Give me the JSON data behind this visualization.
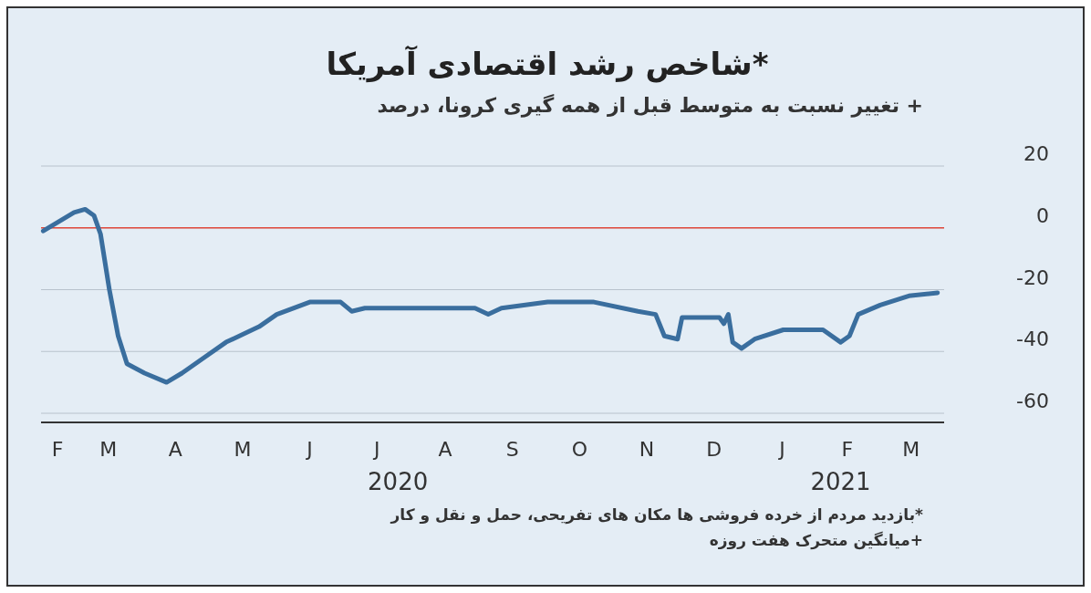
{
  "chart_data": {
    "type": "line",
    "title": "*شاخص رشد اقتصادی آمریکا",
    "subtitle": "+ تغییر نسبت به متوسط قبل از همه گیری کرونا، درصد",
    "x": [
      "2020-02-16",
      "2020-03-01",
      "2020-03-06",
      "2020-03-10",
      "2020-03-13",
      "2020-03-17",
      "2020-03-21",
      "2020-03-25",
      "2020-04-02",
      "2020-04-12",
      "2020-04-19",
      "2020-04-29",
      "2020-05-09",
      "2020-05-24",
      "2020-06-01",
      "2020-06-16",
      "2020-06-30",
      "2020-07-05",
      "2020-07-11",
      "2020-08-01",
      "2020-08-30",
      "2020-09-05",
      "2020-09-11",
      "2020-10-02",
      "2020-10-23",
      "2020-11-12",
      "2020-11-20",
      "2020-11-24",
      "2020-11-30",
      "2020-12-02",
      "2020-12-19",
      "2020-12-21",
      "2020-12-23",
      "2020-12-25",
      "2020-12-29",
      "2021-01-04",
      "2021-01-17",
      "2021-02-04",
      "2021-02-12",
      "2021-02-16",
      "2021-02-20",
      "2021-03-02",
      "2021-03-15",
      "2021-03-28"
    ],
    "series": [
      {
        "color": "#3a6e9e",
        "values": [
          -1,
          5,
          6,
          4,
          -2,
          -20,
          -35,
          -44,
          -47,
          -50,
          -47,
          -42,
          -37,
          -32,
          -28,
          -24,
          -24,
          -27,
          -26,
          -26,
          -26,
          -28,
          -26,
          -24,
          -24,
          -27,
          -28,
          -35,
          -36,
          -29,
          -29,
          -31,
          -28,
          -37,
          -39,
          -36,
          -33,
          -33,
          -37,
          -35,
          -28,
          -25,
          -22,
          -21
        ]
      }
    ],
    "xlim": [
      "2020-02-15",
      "2021-03-31"
    ],
    "xticks": [
      {
        "value": "2020-07-26",
        "label": "2020"
      },
      {
        "value": "2021-02-12",
        "label": "2021"
      }
    ],
    "ylim": [
      -60,
      20
    ],
    "yticks": [
      20,
      0,
      -20,
      -40,
      -60
    ],
    "grid": "y",
    "ref_lines": [
      {
        "axis": "y",
        "value": 0,
        "color": "#e0483a"
      }
    ],
    "annotations": [
      "F",
      "M",
      "A",
      "M",
      "J",
      "J",
      "A",
      "S",
      "O",
      "N",
      "D",
      "J",
      "F",
      "M",
      "*بازدید مردم از خرده فروشی ها مکان های تفریحی، حمل و نقل و کار",
      "+میانگین متحرک هفت روزه"
    ]
  }
}
